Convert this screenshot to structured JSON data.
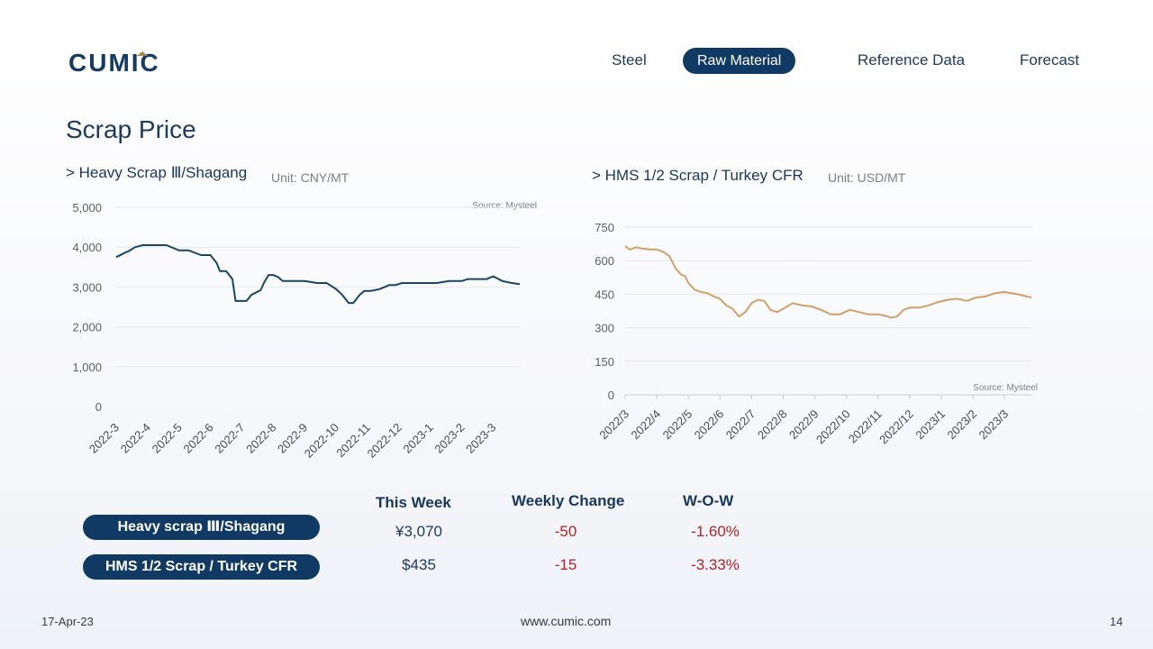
{
  "header": {
    "logo_text": "CUMIC",
    "nav": [
      {
        "label": "Steel",
        "active": false
      },
      {
        "label": "Raw Material",
        "active": true
      },
      {
        "label": "Reference Data",
        "active": false
      },
      {
        "label": "Forecast",
        "active": false
      }
    ]
  },
  "page": {
    "title": "Scrap Price"
  },
  "charts": {
    "left": {
      "title": "> Heavy Scrap Ⅲ/Shagang",
      "unit": "Unit: CNY/MT",
      "source": "Source: Mysteel"
    },
    "right": {
      "title": "> HMS 1/2 Scrap / Turkey CFR",
      "unit": "Unit: USD/MT",
      "source": "Source: Mysteel"
    }
  },
  "chart_data": [
    {
      "type": "line",
      "title": "> Heavy Scrap Ⅲ/Shagang",
      "ylabel": "Unit: CNY/MT",
      "ylim": [
        0,
        5000
      ],
      "yticks": [
        "5,000",
        "4,000",
        "3,000",
        "2,000",
        "1,000",
        "0"
      ],
      "ytick_values": [
        5000,
        4000,
        3000,
        2000,
        1000,
        0
      ],
      "xticks": [
        "2022-3",
        "2022-4",
        "2022-5",
        "2022-6",
        "2022-7",
        "2022-8",
        "2022-9",
        "2022-10",
        "2022-11",
        "2022-12",
        "2023-1",
        "2023-2",
        "2023-3"
      ],
      "xlim": [
        0,
        12.85
      ],
      "grid": true,
      "color": "#1a4468",
      "series": [
        {
          "x": [
            0,
            0.25,
            0.4,
            0.6,
            0.85,
            1.2,
            1.6,
            2.0,
            2.3,
            2.7,
            3.0,
            3.2,
            3.3,
            3.5,
            3.7,
            3.8,
            4.0,
            4.15,
            4.3,
            4.6,
            4.7,
            4.85,
            5.0,
            5.15,
            5.3,
            5.6,
            6.0,
            6.4,
            6.7,
            6.8,
            7.0,
            7.2,
            7.4,
            7.55,
            7.75,
            7.9,
            8.1,
            8.4,
            8.7,
            8.9,
            9.1,
            9.4,
            9.8,
            10.2,
            10.6,
            11.0,
            11.2,
            11.5,
            11.8,
            12.0,
            12.3,
            12.6,
            12.85
          ],
          "y": [
            3750,
            3850,
            3900,
            4000,
            4050,
            4050,
            4050,
            3920,
            3920,
            3800,
            3800,
            3600,
            3400,
            3400,
            3200,
            2650,
            2650,
            2650,
            2800,
            2920,
            3100,
            3300,
            3300,
            3250,
            3150,
            3150,
            3150,
            3100,
            3100,
            3050,
            2950,
            2800,
            2600,
            2600,
            2800,
            2900,
            2900,
            2950,
            3050,
            3050,
            3100,
            3100,
            3100,
            3100,
            3150,
            3150,
            3200,
            3200,
            3200,
            3270,
            3150,
            3100,
            3070
          ]
        }
      ]
    },
    {
      "type": "line",
      "title": "> HMS 1/2 Scrap / Turkey CFR",
      "ylabel": "Unit: USD/MT",
      "ylim": [
        0,
        750
      ],
      "yticks": [
        "750",
        "600",
        "450",
        "300",
        "150",
        "0"
      ],
      "ytick_values": [
        750,
        600,
        450,
        300,
        150,
        0
      ],
      "xticks": [
        "2022/3",
        "2022/4",
        "2022/5",
        "2022/6",
        "2022/7",
        "2022/8",
        "2022/9",
        "2022/10",
        "2022/11",
        "2022/12",
        "2023/1",
        "2023/2",
        "2023/3"
      ],
      "xlim": [
        0,
        12.85
      ],
      "grid": true,
      "color": "#cfa06a",
      "series": [
        {
          "x": [
            0,
            0.15,
            0.35,
            0.5,
            0.8,
            1.0,
            1.2,
            1.4,
            1.6,
            1.75,
            1.9,
            2.0,
            2.2,
            2.4,
            2.6,
            2.8,
            3.0,
            3.2,
            3.4,
            3.6,
            3.8,
            4.0,
            4.2,
            4.4,
            4.6,
            4.8,
            5.0,
            5.3,
            5.6,
            5.9,
            6.2,
            6.5,
            6.8,
            7.1,
            7.4,
            7.7,
            8.0,
            8.2,
            8.4,
            8.6,
            8.8,
            9.0,
            9.3,
            9.6,
            9.9,
            10.2,
            10.5,
            10.8,
            11.1,
            11.4,
            11.7,
            12.0,
            12.4,
            12.85
          ],
          "y": [
            665,
            650,
            660,
            655,
            650,
            650,
            640,
            620,
            565,
            540,
            530,
            500,
            470,
            460,
            455,
            440,
            430,
            400,
            385,
            350,
            370,
            410,
            425,
            420,
            380,
            370,
            385,
            410,
            400,
            395,
            380,
            360,
            360,
            380,
            370,
            360,
            360,
            355,
            345,
            350,
            380,
            390,
            390,
            400,
            415,
            425,
            430,
            420,
            435,
            440,
            455,
            460,
            450,
            435
          ]
        }
      ]
    }
  ],
  "table": {
    "headers": [
      "This Week",
      "Weekly Change",
      "W-O-W"
    ],
    "rows": [
      {
        "label": "Heavy scrap Ⅲ/Shagang",
        "this_week": "¥3,070",
        "change": "-50",
        "wow": "-1.60%"
      },
      {
        "label": "HMS 1/2 Scrap / Turkey CFR",
        "this_week": "$435",
        "change": "-15",
        "wow": "-3.33%"
      }
    ]
  },
  "footer": {
    "date": "17-Apr-23",
    "url": "www.cumic.com",
    "page_number": "14"
  },
  "colors": {
    "brand_navy": "#103a63",
    "logo_gold": "#a8864a",
    "negative": "#b2222a",
    "line_left": "#1a4468",
    "line_right": "#cfa06a"
  }
}
